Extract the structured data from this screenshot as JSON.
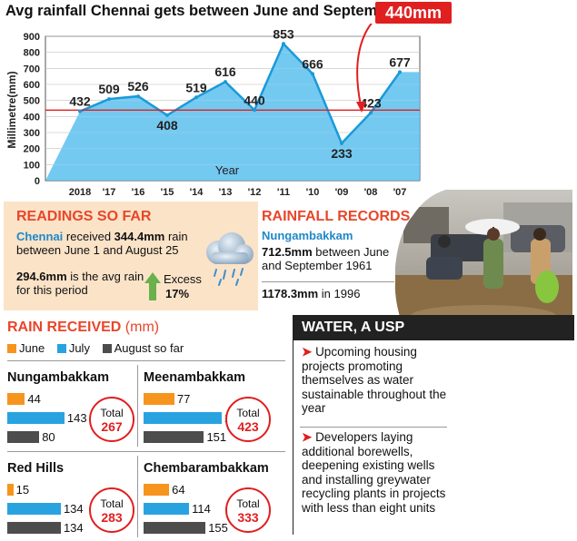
{
  "title": "Avg rainfall Chennai gets between June and September",
  "average_label": "440mm",
  "chart_data": {
    "type": "area",
    "title": "Avg rainfall Chennai gets between June and September",
    "xlabel": "Year",
    "ylabel": "Millimetre(mm)",
    "categories": [
      "2018",
      "'17",
      "'16",
      "'15",
      "'14",
      "'13",
      "'12",
      "'11",
      "'10",
      "'09",
      "'08",
      "'07"
    ],
    "values": [
      432,
      509,
      526,
      408,
      519,
      616,
      440,
      853,
      666,
      233,
      423,
      677
    ],
    "yticks": [
      "0",
      "100",
      "200",
      "300",
      "400",
      "500",
      "600",
      "700",
      "800",
      "900"
    ],
    "ylim": [
      0,
      900
    ],
    "average": 440,
    "colors": {
      "area": "#5cc0ee",
      "line": "#1a9ad8",
      "average_line": "#e01f1f",
      "accent": "#e01f1f"
    }
  },
  "readings": {
    "heading": "READINGS SO FAR",
    "city": "Chennai",
    "received_pre": " received ",
    "received_val": "344.4mm",
    "received_post": " rain between June 1 and August 25",
    "avg_val": "294.6mm",
    "avg_text": " is the avg rain for this period",
    "excess_label": "Excess",
    "excess_value": "17%",
    "icons": [
      "rain-cloud-icon",
      "up-arrow-icon"
    ]
  },
  "records": {
    "heading": "RAINFALL RECORDS",
    "station": "Nungambakkam",
    "rec1_val": "712.5mm",
    "rec1_text": " between June and September 1961",
    "rec2_val": "1178.3mm",
    "rec2_text": " in 1996"
  },
  "rain_received": {
    "heading": "RAIN RECEIVED",
    "unit": " (mm)",
    "legend": [
      {
        "label": "June",
        "color": "#f7941d"
      },
      {
        "label": "July",
        "color": "#29a3e0"
      },
      {
        "label": "August so far",
        "color": "#4d4d4d"
      }
    ],
    "total_label": "Total",
    "stations": [
      {
        "name": "Nungambakkam",
        "june": 44,
        "july": 143,
        "august": 80,
        "total": "267"
      },
      {
        "name": "Meenambakkam",
        "june": 77,
        "july": 195,
        "august": 151,
        "total": "423"
      },
      {
        "name": "Red Hills",
        "june": 15,
        "july": 134,
        "august": 134,
        "total": "283"
      },
      {
        "name": "Chembarambakkam",
        "june": 64,
        "july": 114,
        "august": 155,
        "total": "333"
      }
    ]
  },
  "water": {
    "heading": "WATER, A USP",
    "p1": "Upcoming housing projects promoting themselves as water sustainable throughout the year",
    "p2": "Developers laying additional borewells, deepening existing wells and installing greywater recycling plants in projects with less than eight units"
  }
}
